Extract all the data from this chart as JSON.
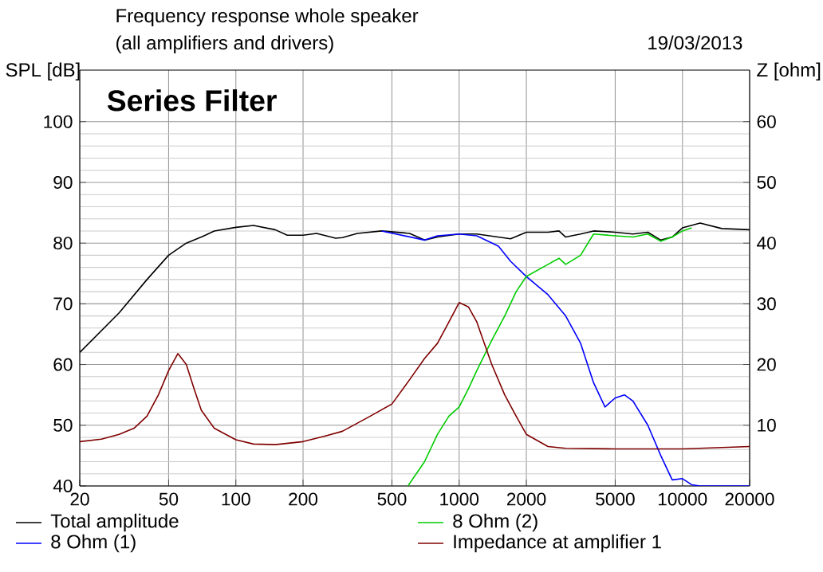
{
  "chart_data": {
    "type": "line",
    "title": "Frequency response whole speaker",
    "subtitle": "(all amplifiers and drivers)",
    "ylabel": "SPL [dB]",
    "y2label": "Z [ohm]",
    "annotations": [
      "19/03/2013",
      "Series Filter"
    ],
    "log": "x",
    "grid": true,
    "legend": "bottom",
    "marker": "none",
    "line_style": "solid",
    "xlim": [
      20,
      20000
    ],
    "xticks": [
      20,
      50,
      100,
      200,
      500,
      1000,
      2000,
      5000,
      10000,
      20000
    ],
    "ylim": [
      40,
      108.5
    ],
    "yticks": [
      40,
      50,
      60,
      70,
      80,
      90,
      100
    ],
    "y2lim": [
      0,
      68.5
    ],
    "y2ticks": [
      10,
      20,
      30,
      40,
      50,
      60
    ],
    "series": [
      {
        "name": "Total amplitude",
        "color": "#000000",
        "x": [
          20,
          30,
          40,
          50,
          60,
          70,
          80,
          100,
          120,
          150,
          170,
          200,
          230,
          280,
          300,
          350,
          450,
          600,
          700,
          800,
          1000,
          1200,
          1700,
          2000,
          2500,
          2800,
          3000,
          3500,
          4000,
          5000,
          6000,
          7000,
          8000,
          9000,
          10000,
          12000,
          15000,
          20000
        ],
        "values": [
          62,
          68.5,
          74,
          78,
          80,
          81,
          82,
          82.6,
          82.9,
          82.2,
          81.3,
          81.3,
          81.6,
          80.8,
          80.9,
          81.6,
          82,
          81.6,
          80.5,
          81,
          81.5,
          81.5,
          80.7,
          81.8,
          81.8,
          82,
          81,
          81.5,
          82,
          81.8,
          81.5,
          81.8,
          80.5,
          81,
          82.5,
          83.3,
          82.4,
          82.2
        ]
      },
      {
        "name": "8 Ohm (1)",
        "color": "#0000ff",
        "x": [
          450,
          700,
          800,
          1000,
          1200,
          1500,
          1700,
          2000,
          2500,
          3000,
          3500,
          4000,
          4500,
          5000,
          5500,
          6000,
          7000,
          8000,
          9000,
          10000,
          11000,
          12000,
          20000
        ],
        "values": [
          82,
          80.5,
          81.2,
          81.5,
          81.2,
          79.5,
          77,
          74.5,
          71.5,
          68,
          63.5,
          57,
          53,
          54.5,
          55,
          54,
          50,
          45,
          41,
          41.2,
          40.2,
          40,
          40
        ]
      },
      {
        "name": "8 Ohm (2)",
        "color": "#00cc00",
        "x": [
          590,
          700,
          800,
          900,
          1000,
          1100,
          1200,
          1400,
          1600,
          1800,
          2000,
          2500,
          2800,
          3000,
          3500,
          4000,
          5000,
          6000,
          7000,
          8000,
          9000,
          10000,
          11000
        ],
        "values": [
          40,
          44,
          48.5,
          51.5,
          53,
          56,
          59,
          64,
          68,
          72,
          74.5,
          76.5,
          77.5,
          76.5,
          78,
          81.5,
          81.2,
          81,
          81.5,
          80.3,
          81,
          82,
          82.5
        ]
      },
      {
        "name": "Impedance at amplifier 1",
        "color": "#800000",
        "axis": "y2",
        "x": [
          20,
          25,
          30,
          35,
          40,
          45,
          50,
          55,
          60,
          65,
          70,
          80,
          100,
          120,
          150,
          200,
          250,
          300,
          400,
          500,
          600,
          700,
          800,
          900,
          1000,
          1100,
          1200,
          1400,
          1600,
          1800,
          2000,
          2500,
          3000,
          5000,
          10000,
          20000
        ],
        "values": [
          7.3,
          7.7,
          8.5,
          9.5,
          11.5,
          15,
          19,
          21.8,
          20,
          16,
          12.5,
          9.5,
          7.6,
          6.9,
          6.8,
          7.3,
          8.2,
          9,
          11.5,
          13.5,
          17.5,
          21,
          23.5,
          27,
          30.2,
          29.5,
          27,
          20,
          15,
          11.5,
          8.5,
          6.5,
          6.2,
          6.1,
          6.1,
          6.5
        ]
      }
    ]
  }
}
